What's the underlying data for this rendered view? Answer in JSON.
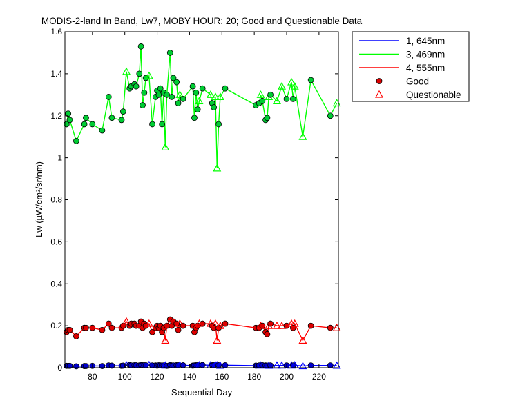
{
  "chart_data": {
    "type": "line",
    "title": "MODIS-2-land In Band,  Lw7, MOBY HOUR: 20;  Good and Questionable Data",
    "xlabel": "Sequential Day",
    "ylabel": "Lw (µW/cm²/sr/nm)",
    "xlim": [
      63,
      232
    ],
    "ylim": [
      0,
      1.6
    ],
    "xticks": [
      "80",
      "100",
      "120",
      "140",
      "160",
      "180",
      "200",
      "220"
    ],
    "xtick_values": [
      80,
      100,
      120,
      140,
      160,
      180,
      200,
      220
    ],
    "yticks": [
      "0",
      "0.2",
      "0.4",
      "0.6",
      "0.8",
      "1",
      "1.2",
      "1.4",
      "1.6"
    ],
    "ytick_values": [
      0,
      0.2,
      0.4,
      0.6,
      0.8,
      1.0,
      1.2,
      1.4,
      1.6
    ],
    "grid": false,
    "legend_position": "outside-top-right",
    "legend": [
      {
        "label": "1, 645nm",
        "kind": "line",
        "color": "#0000ff"
      },
      {
        "label": "3, 469nm",
        "kind": "line",
        "color": "#00ff00"
      },
      {
        "label": "4, 555nm",
        "kind": "line",
        "color": "#ff0000"
      },
      {
        "label": "Good",
        "kind": "circle",
        "color": "#dd0000"
      },
      {
        "label": "Questionable",
        "kind": "triangle",
        "color": "#ff0000"
      }
    ],
    "x": [
      64,
      65,
      66,
      70,
      75,
      76,
      80,
      86,
      90,
      92,
      98,
      99,
      101,
      103,
      104,
      106,
      107,
      109,
      110,
      111,
      112,
      113,
      115,
      117,
      119,
      120,
      121,
      122,
      123,
      124,
      125,
      126,
      128,
      129,
      130,
      132,
      133,
      134,
      136,
      142,
      143,
      144,
      145,
      146,
      148,
      153,
      154,
      155,
      156,
      157,
      158,
      159,
      162,
      181,
      183,
      184,
      185,
      187,
      188,
      189,
      190,
      194,
      197,
      200,
      203,
      204,
      205,
      210,
      215,
      227,
      231
    ],
    "series": [
      {
        "name": "1, 645nm",
        "color": "#0000ff",
        "values": [
          0.009,
          0.009,
          0.009,
          0.007,
          0.008,
          0.008,
          0.009,
          0.008,
          0.011,
          0.01,
          0.009,
          0.01,
          0.012,
          0.013,
          0.011,
          0.012,
          0.012,
          0.011,
          0.013,
          0.012,
          0.012,
          0.012,
          0.013,
          0.011,
          0.011,
          0.01,
          0.012,
          0.011,
          0.011,
          0.011,
          0.011,
          0.009,
          0.013,
          0.011,
          0.011,
          0.012,
          0.012,
          0.012,
          0.012,
          0.01,
          0.011,
          0.012,
          0.012,
          0.012,
          0.013,
          0.012,
          0.012,
          0.012,
          0.012,
          0.012,
          0.012,
          0.01,
          0.012,
          0.01,
          0.011,
          0.011,
          0.012,
          0.011,
          0.01,
          0.01,
          0.011,
          0.011,
          0.011,
          0.011,
          0.011,
          0.011,
          0.012,
          0.008,
          0.011,
          0.011,
          0.01
        ]
      },
      {
        "name": "3, 469nm",
        "color": "#00ff00",
        "values": [
          1.16,
          1.21,
          1.18,
          1.08,
          1.16,
          1.19,
          1.16,
          1.13,
          1.29,
          1.19,
          1.18,
          1.22,
          1.41,
          1.33,
          1.34,
          1.35,
          1.34,
          1.4,
          1.53,
          1.25,
          1.31,
          1.38,
          1.39,
          1.16,
          1.29,
          1.32,
          1.3,
          1.33,
          1.16,
          1.31,
          1.05,
          1.3,
          1.5,
          1.29,
          1.38,
          1.36,
          1.26,
          1.3,
          1.28,
          1.34,
          1.19,
          1.31,
          1.23,
          1.27,
          1.33,
          1.3,
          1.26,
          1.24,
          1.29,
          0.95,
          1.16,
          1.29,
          1.33,
          1.25,
          1.26,
          1.3,
          1.27,
          1.18,
          1.19,
          1.29,
          1.3,
          1.27,
          1.34,
          1.28,
          1.36,
          1.28,
          1.34,
          1.1,
          1.37,
          1.2,
          1.26
        ]
      },
      {
        "name": "4, 555nm",
        "color": "#ff0000",
        "values": [
          0.17,
          0.18,
          0.18,
          0.15,
          0.19,
          0.19,
          0.19,
          0.18,
          0.21,
          0.19,
          0.19,
          0.2,
          0.22,
          0.2,
          0.21,
          0.21,
          0.2,
          0.2,
          0.22,
          0.19,
          0.21,
          0.2,
          0.21,
          0.17,
          0.19,
          0.2,
          0.19,
          0.2,
          0.17,
          0.19,
          0.13,
          0.2,
          0.23,
          0.2,
          0.22,
          0.21,
          0.18,
          0.21,
          0.2,
          0.2,
          0.17,
          0.19,
          0.2,
          0.21,
          0.21,
          0.21,
          0.2,
          0.19,
          0.21,
          0.13,
          0.19,
          0.2,
          0.21,
          0.19,
          0.19,
          0.2,
          0.2,
          0.17,
          0.16,
          0.2,
          0.21,
          0.2,
          0.2,
          0.2,
          0.21,
          0.19,
          0.21,
          0.13,
          0.2,
          0.19,
          0.19
        ]
      }
    ],
    "flags": [
      "G",
      "G",
      "G",
      "G",
      "G",
      "G",
      "G",
      "G",
      "G",
      "G",
      "G",
      "G",
      "Q",
      "G",
      "G",
      "G",
      "G",
      "G",
      "G",
      "G",
      "G",
      "G",
      "Q",
      "G",
      "G",
      "G",
      "G",
      "G",
      "G",
      "G",
      "Q",
      "G",
      "G",
      "G",
      "G",
      "G",
      "G",
      "Q",
      "G",
      "G",
      "G",
      "G",
      "G",
      "Q",
      "G",
      "Q",
      "G",
      "G",
      "Q",
      "Q",
      "G",
      "Q",
      "G",
      "G",
      "G",
      "Q",
      "G",
      "G",
      "G",
      "Q",
      "G",
      "Q",
      "Q",
      "G",
      "Q",
      "G",
      "Q",
      "Q",
      "G",
      "G",
      "Q"
    ]
  }
}
